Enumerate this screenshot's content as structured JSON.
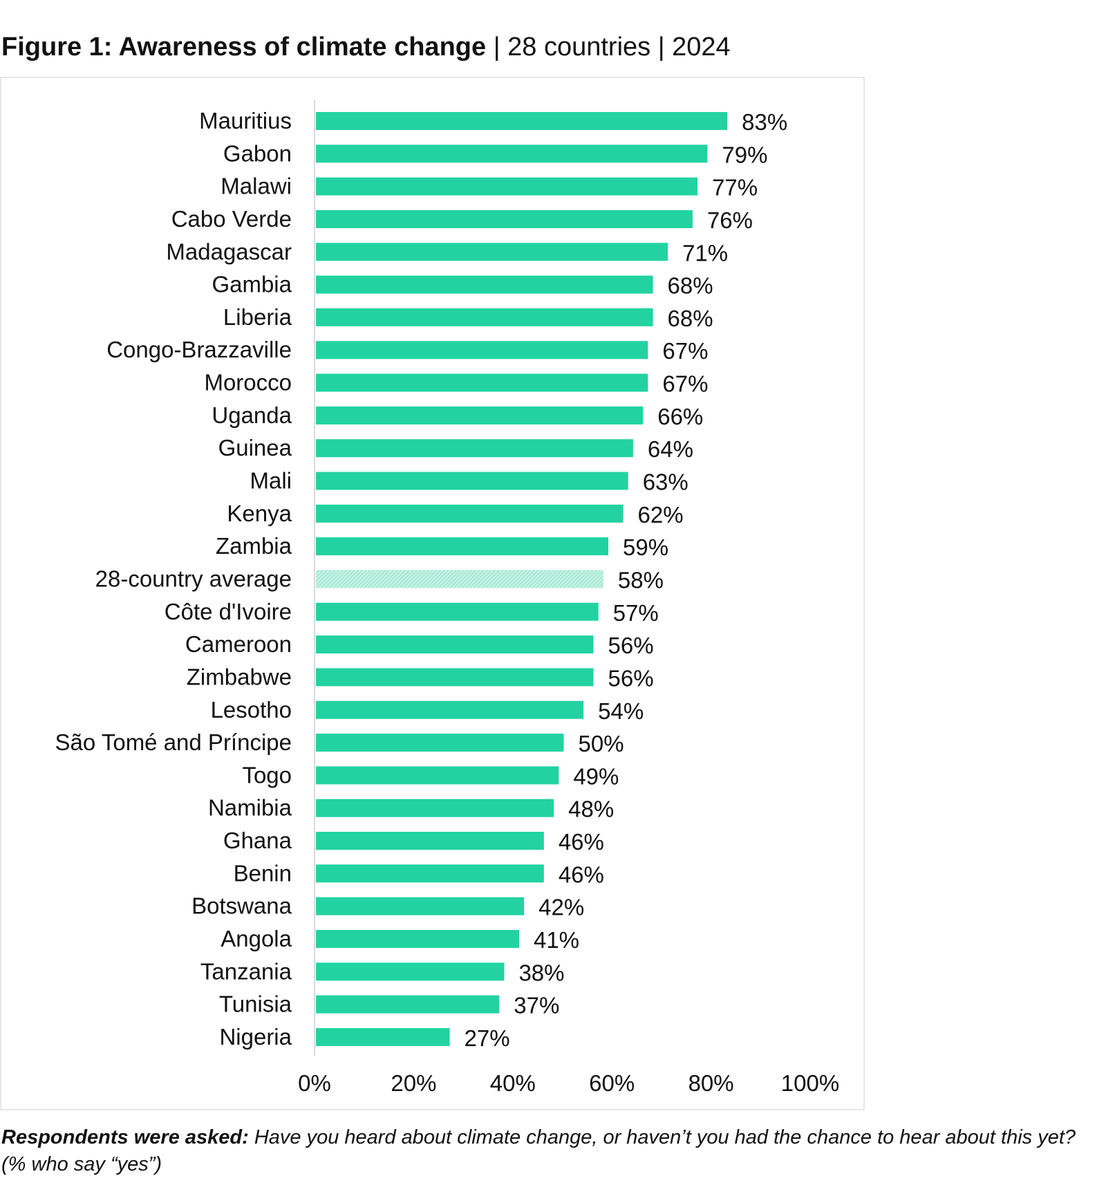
{
  "header": {
    "title_bold": "Figure 1: Awareness of climate change",
    "title_rest": " | 28 countries | 2024"
  },
  "footnote": {
    "lead": "Respondents were asked:",
    "question": " Have you heard about climate change, or haven’t you had the chance to hear about this yet? (% who say “yes”)"
  },
  "colors": {
    "bar": "#22d3a1",
    "average_bar": "#a6ebd6",
    "axis": "#d9d9d9",
    "text": "#111111"
  },
  "chart_data": {
    "type": "bar",
    "orientation": "horizontal",
    "title": "Figure 1: Awareness of climate change | 28 countries | 2024",
    "xlabel": "",
    "ylabel": "",
    "xlim": [
      0,
      100
    ],
    "x_ticks": [
      "0%",
      "20%",
      "40%",
      "60%",
      "80%",
      "100%"
    ],
    "grid": false,
    "value_suffix": "%",
    "highlighted_category": "28-country average",
    "categories": [
      "Mauritius",
      "Gabon",
      "Malawi",
      "Cabo Verde",
      "Madagascar",
      "Gambia",
      "Liberia",
      "Congo-Brazzaville",
      "Morocco",
      "Uganda",
      "Guinea",
      "Mali",
      "Kenya",
      "Zambia",
      "28-country average",
      "Côte d'Ivoire",
      "Cameroon",
      "Zimbabwe",
      "Lesotho",
      "São Tomé and Príncipe",
      "Togo",
      "Namibia",
      "Ghana",
      "Benin",
      "Botswana",
      "Angola",
      "Tanzania",
      "Tunisia",
      "Nigeria"
    ],
    "values": [
      83,
      79,
      77,
      76,
      71,
      68,
      68,
      67,
      67,
      66,
      64,
      63,
      62,
      59,
      58,
      57,
      56,
      56,
      54,
      50,
      49,
      48,
      46,
      46,
      42,
      41,
      38,
      37,
      27
    ]
  }
}
